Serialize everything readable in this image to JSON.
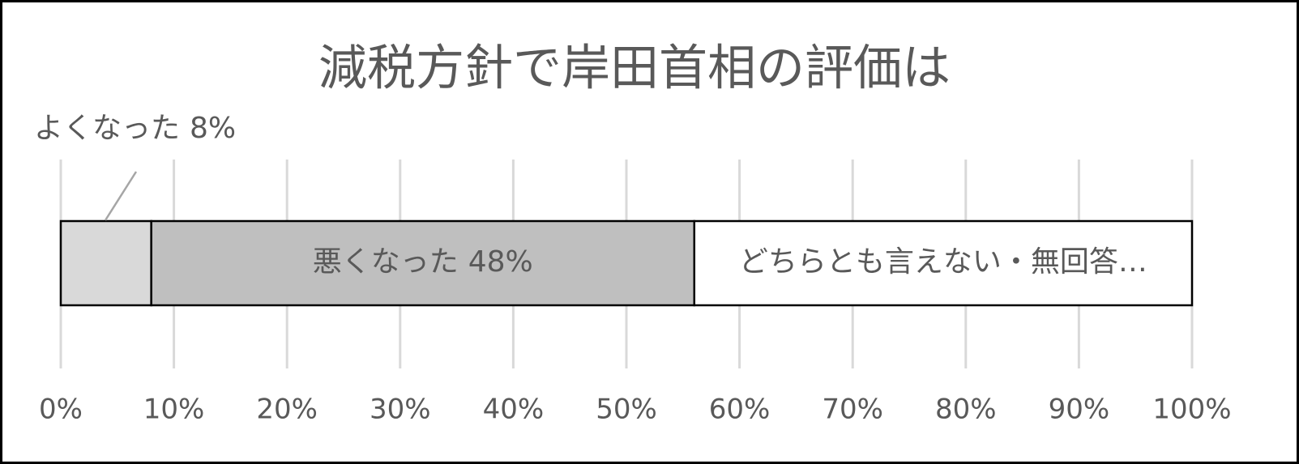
{
  "chart_data": {
    "type": "stacked-bar-horizontal",
    "title": "減税方針で岸田首相の評価は",
    "xlim": [
      0,
      100
    ],
    "xticks": [
      {
        "value": 0,
        "label": "0%"
      },
      {
        "value": 10,
        "label": "10%"
      },
      {
        "value": 20,
        "label": "20%"
      },
      {
        "value": 30,
        "label": "30%"
      },
      {
        "value": 40,
        "label": "40%"
      },
      {
        "value": 50,
        "label": "50%"
      },
      {
        "value": 60,
        "label": "60%"
      },
      {
        "value": 70,
        "label": "70%"
      },
      {
        "value": 80,
        "label": "80%"
      },
      {
        "value": 90,
        "label": "90%"
      },
      {
        "value": 100,
        "label": "100%"
      }
    ],
    "grid": true,
    "series": [
      {
        "name": "よくなった",
        "color": "#d9d9d9",
        "values": [
          8
        ],
        "value_labels": [
          "8%"
        ]
      },
      {
        "name": "悪くなった",
        "color": "#bfbfbf",
        "values": [
          48
        ],
        "value_labels": [
          "48%"
        ]
      },
      {
        "name": "どちらとも言えない・無回答…",
        "color": "#ffffff",
        "values": [
          44
        ]
      }
    ]
  }
}
